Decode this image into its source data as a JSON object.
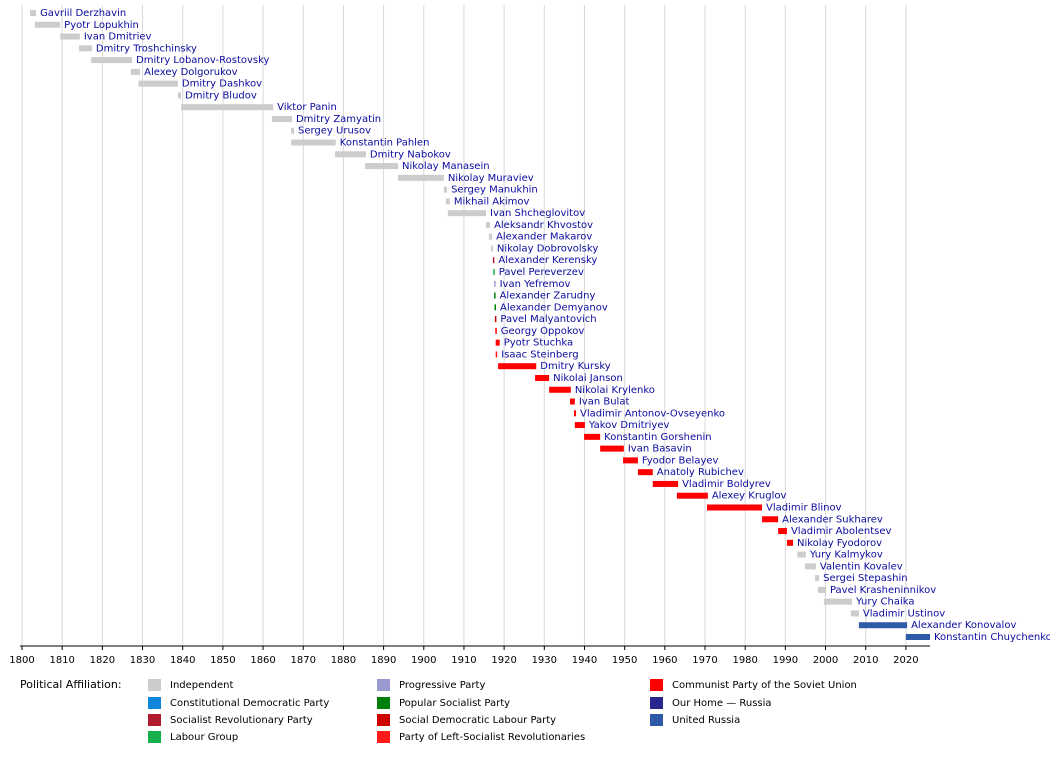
{
  "chart_data": {
    "type": "timeline",
    "xlim": [
      1799.5,
      2026
    ],
    "xticks": [
      1800,
      1810,
      1820,
      1830,
      1840,
      1850,
      1860,
      1870,
      1880,
      1890,
      1900,
      1910,
      1920,
      1930,
      1940,
      1950,
      1960,
      1970,
      1980,
      1990,
      2000,
      2010,
      2020
    ],
    "grid": true,
    "legend_title": "Political Affiliation:",
    "parties": [
      {
        "name": "Independent",
        "color": "#cccccc"
      },
      {
        "name": "Constitutional Democratic Party",
        "color": "#0f86d9"
      },
      {
        "name": "Socialist Revolutionary Party",
        "color": "#b01c2e"
      },
      {
        "name": "Labour Group",
        "color": "#16b04b"
      },
      {
        "name": "Progressive Party",
        "color": "#9a9ad0"
      },
      {
        "name": "Popular Socialist Party",
        "color": "#00800a"
      },
      {
        "name": "Social Democratic Labour Party",
        "color": "#cc0000"
      },
      {
        "name": "Party of Left-Socialist Revolutionaries",
        "color": "#ff1a1a"
      },
      {
        "name": "Communist Party of the Soviet Union",
        "color": "#ff0000"
      },
      {
        "name": "Our Home — Russia",
        "color": "#27278f"
      },
      {
        "name": "United Russia",
        "color": "#2f5aa8"
      }
    ],
    "bars": [
      {
        "name": "Gavriil Derzhavin",
        "party": "Independent",
        "start": 1802,
        "end": 1803.5
      },
      {
        "name": "Pyotr Lopukhin",
        "party": "Independent",
        "start": 1803.2,
        "end": 1809.5
      },
      {
        "name": "Ivan Dmitriev",
        "party": "Independent",
        "start": 1809.5,
        "end": 1814.4
      },
      {
        "name": "Dmitry Troshchinsky",
        "party": "Independent",
        "start": 1814.2,
        "end": 1817.4
      },
      {
        "name": "Dmitry Lobanov-Rostovsky",
        "party": "Independent",
        "start": 1817.2,
        "end": 1827.4
      },
      {
        "name": "Alexey Dolgorukov",
        "party": "Independent",
        "start": 1827.1,
        "end": 1829.4
      },
      {
        "name": "Dmitry Dashkov",
        "party": "Independent",
        "start": 1829,
        "end": 1838.8
      },
      {
        "name": "Dmitry Bludov",
        "party": "Independent",
        "start": 1838.8,
        "end": 1839.6
      },
      {
        "name": "Viktor Panin",
        "party": "Independent",
        "start": 1839.6,
        "end": 1862.5
      },
      {
        "name": "Dmitry Zamyatin",
        "party": "Independent",
        "start": 1862.2,
        "end": 1867.2
      },
      {
        "name": "Sergey Urusov",
        "party": "Independent",
        "start": 1867,
        "end": 1867.7
      },
      {
        "name": "Konstantin Pahlen",
        "party": "Independent",
        "start": 1867,
        "end": 1878.1
      },
      {
        "name": "Dmitry Nabokov",
        "party": "Independent",
        "start": 1877.9,
        "end": 1885.6
      },
      {
        "name": "Nikolay Manasein",
        "party": "Independent",
        "start": 1885.4,
        "end": 1893.6
      },
      {
        "name": "Nikolay Muraviev",
        "party": "Independent",
        "start": 1893.6,
        "end": 1905
      },
      {
        "name": "Sergey Manukhin",
        "party": "Independent",
        "start": 1905,
        "end": 1905.8
      },
      {
        "name": "Mikhail Akimov",
        "party": "Independent",
        "start": 1905.5,
        "end": 1906.5
      },
      {
        "name": "Ivan Shcheglovitov",
        "party": "Independent",
        "start": 1906,
        "end": 1915.5
      },
      {
        "name": "Aleksandr Khvostov",
        "party": "Independent",
        "start": 1915.5,
        "end": 1916.5
      },
      {
        "name": "Alexander Makarov",
        "party": "Independent",
        "start": 1916.2,
        "end": 1917
      },
      {
        "name": "Nikolay Dobrovolsky",
        "party": "Independent",
        "start": 1916.7,
        "end": 1917.2
      },
      {
        "name": "Alexander Kerensky",
        "party": "Socialist Revolutionary Party",
        "start": 1917.2,
        "end": 1917.4
      },
      {
        "name": "Pavel Pereverzev",
        "party": "Labour Group",
        "start": 1917.3,
        "end": 1917.5
      },
      {
        "name": "Ivan Yefremov",
        "party": "Progressive Party",
        "start": 1917.5,
        "end": 1917.6
      },
      {
        "name": "Alexander Zarudny",
        "party": "Popular Socialist Party",
        "start": 1917.5,
        "end": 1917.7
      },
      {
        "name": "Alexander Demyanov",
        "party": "Popular Socialist Party",
        "start": 1917.6,
        "end": 1917.7
      },
      {
        "name": "Pavel Malyantovich",
        "party": "Social Democratic Labour Party",
        "start": 1917.7,
        "end": 1917.85
      },
      {
        "name": "Georgy Oppokov",
        "party": "Communist Party of the Soviet Union",
        "start": 1917.8,
        "end": 1917.9
      },
      {
        "name": "Pyotr Stuchka",
        "party": "Communist Party of the Soviet Union",
        "start": 1917.9,
        "end": 1918.9
      },
      {
        "name": "Isaac Steinberg",
        "party": "Party of Left-Socialist Revolutionaries",
        "start": 1917.9,
        "end": 1918.2
      },
      {
        "name": "Dmitry Kursky",
        "party": "Communist Party of the Soviet Union",
        "start": 1918.5,
        "end": 1928
      },
      {
        "name": "Nikolai Janson",
        "party": "Communist Party of the Soviet Union",
        "start": 1927.7,
        "end": 1931.2
      },
      {
        "name": "Nikolai Krylenko",
        "party": "Communist Party of the Soviet Union",
        "start": 1931.2,
        "end": 1936.6
      },
      {
        "name": "Ivan Bulat",
        "party": "Communist Party of the Soviet Union",
        "start": 1936.4,
        "end": 1937.6
      },
      {
        "name": "Vladimir Antonov-Ovseyenko",
        "party": "Communist Party of the Soviet Union",
        "start": 1937.4,
        "end": 1937.9
      },
      {
        "name": "Yakov Dmitriyev",
        "party": "Communist Party of the Soviet Union",
        "start": 1937.6,
        "end": 1940.1
      },
      {
        "name": "Konstantin Gorshenin",
        "party": "Communist Party of the Soviet Union",
        "start": 1939.9,
        "end": 1943.9
      },
      {
        "name": "Ivan Basavin",
        "party": "Communist Party of the Soviet Union",
        "start": 1943.9,
        "end": 1949.8
      },
      {
        "name": "Fyodor Belayev",
        "party": "Communist Party of the Soviet Union",
        "start": 1949.6,
        "end": 1953.3
      },
      {
        "name": "Anatoly Rubichev",
        "party": "Communist Party of the Soviet Union",
        "start": 1953.3,
        "end": 1957
      },
      {
        "name": "Vladimir Boldyrev",
        "party": "Communist Party of the Soviet Union",
        "start": 1957,
        "end": 1963.3
      },
      {
        "name": "Alexey Kruglov",
        "party": "Communist Party of the Soviet Union",
        "start": 1963,
        "end": 1970.7
      },
      {
        "name": "Vladimir Blinov",
        "party": "Communist Party of the Soviet Union",
        "start": 1970.5,
        "end": 1984.2
      },
      {
        "name": "Alexander Sukharev",
        "party": "Communist Party of the Soviet Union",
        "start": 1984.2,
        "end": 1988.2
      },
      {
        "name": "Vladimir Abolentsev",
        "party": "Communist Party of the Soviet Union",
        "start": 1988.2,
        "end": 1990.4
      },
      {
        "name": "Nikolay Fyodorov",
        "party": "Communist Party of the Soviet Union",
        "start": 1990.4,
        "end": 1991.9
      },
      {
        "name": "Yury Kalmykov",
        "party": "Independent",
        "start": 1993,
        "end": 1995.1
      },
      {
        "name": "Valentin Kovalev",
        "party": "Independent",
        "start": 1994.9,
        "end": 1997.6
      },
      {
        "name": "Sergei Stepashin",
        "party": "Independent",
        "start": 1997.4,
        "end": 1998.4
      },
      {
        "name": "Pavel Krasheninnikov",
        "party": "Independent",
        "start": 1998.1,
        "end": 2000.1
      },
      {
        "name": "Yury Chaika",
        "party": "Independent",
        "start": 1999.6,
        "end": 2006.6
      },
      {
        "name": "Vladimir Ustinov",
        "party": "Independent",
        "start": 2006.3,
        "end": 2008.3
      },
      {
        "name": "Alexander Konovalov",
        "party": "United Russia",
        "start": 2008.3,
        "end": 2020.3
      },
      {
        "name": "Konstantin Chuychenko",
        "party": "United Russia",
        "start": 2020,
        "end": 2026
      }
    ]
  }
}
